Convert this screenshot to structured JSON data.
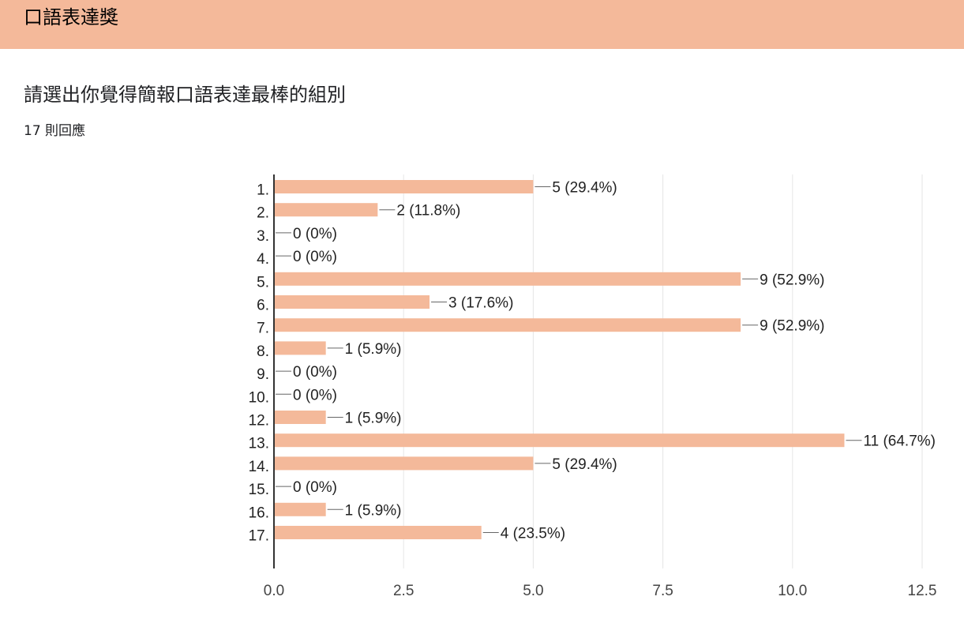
{
  "section": {
    "title": "口語表達獎"
  },
  "question": {
    "title": "請選出你覺得簡報口語表達最棒的組別",
    "responses": "17 則回應"
  },
  "chart_data": {
    "type": "bar",
    "orientation": "horizontal",
    "categories": [
      "1.",
      "2.",
      "3.",
      "4.",
      "5.",
      "6.",
      "7.",
      "8.",
      "9.",
      "10.",
      "12.",
      "13.",
      "14.",
      "15.",
      "16.",
      "17."
    ],
    "values": [
      5,
      2,
      0,
      0,
      9,
      3,
      9,
      1,
      0,
      0,
      1,
      11,
      5,
      0,
      1,
      4
    ],
    "data_labels": [
      "5 (29.4%)",
      "2 (11.8%)",
      "0 (0%)",
      "0 (0%)",
      "9 (52.9%)",
      "3 (17.6%)",
      "9 (52.9%)",
      "1 (5.9%)",
      "0 (0%)",
      "0 (0%)",
      "1 (5.9%)",
      "11 (64.7%)",
      "5 (29.4%)",
      "0 (0%)",
      "1 (5.9%)",
      "4 (23.5%)"
    ],
    "xlim": [
      0,
      12.5
    ],
    "xticks": [
      "0.0",
      "2.5",
      "5.0",
      "7.5",
      "10.0",
      "12.5"
    ],
    "grid": true,
    "legend": false,
    "title": "",
    "xlabel": "",
    "ylabel": "",
    "bar_color": "#f4b99a"
  },
  "colors": {
    "header_band": "#f4b99a",
    "bar": "#f4b99a",
    "grid": "#e6e6e6",
    "axis": "#333333",
    "text": "#202124"
  }
}
